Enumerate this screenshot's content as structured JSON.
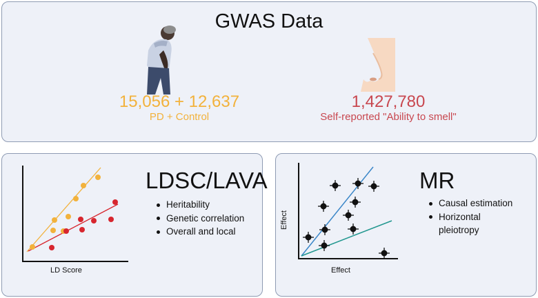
{
  "gwas": {
    "title": "GWAS Data",
    "pd_count": "15,056 + 12,637",
    "pd_label": "PD + Control",
    "smell_count": "1,427,780",
    "smell_label": "Self-reported \"Ability to smell\""
  },
  "ldsc": {
    "title": "LDSC/LAVA",
    "bullets": [
      "Heritability",
      "Genetic correlation",
      "Overall and local"
    ],
    "xlabel": "LD Score"
  },
  "mr": {
    "title": "MR",
    "bullets": [
      "Causal estimation",
      "Horizontal",
      "pleiotropy"
    ],
    "xlabel": "Effect",
    "ylabel": "Effect"
  },
  "colors": {
    "orange": "#f2b23c",
    "red": "#c8474f",
    "ldsc_red_points": "#d7262e",
    "mr_blue": "#3a86c8",
    "mr_teal": "#21978f"
  },
  "icons": [
    "elderly-person-icon",
    "nose-icon"
  ]
}
